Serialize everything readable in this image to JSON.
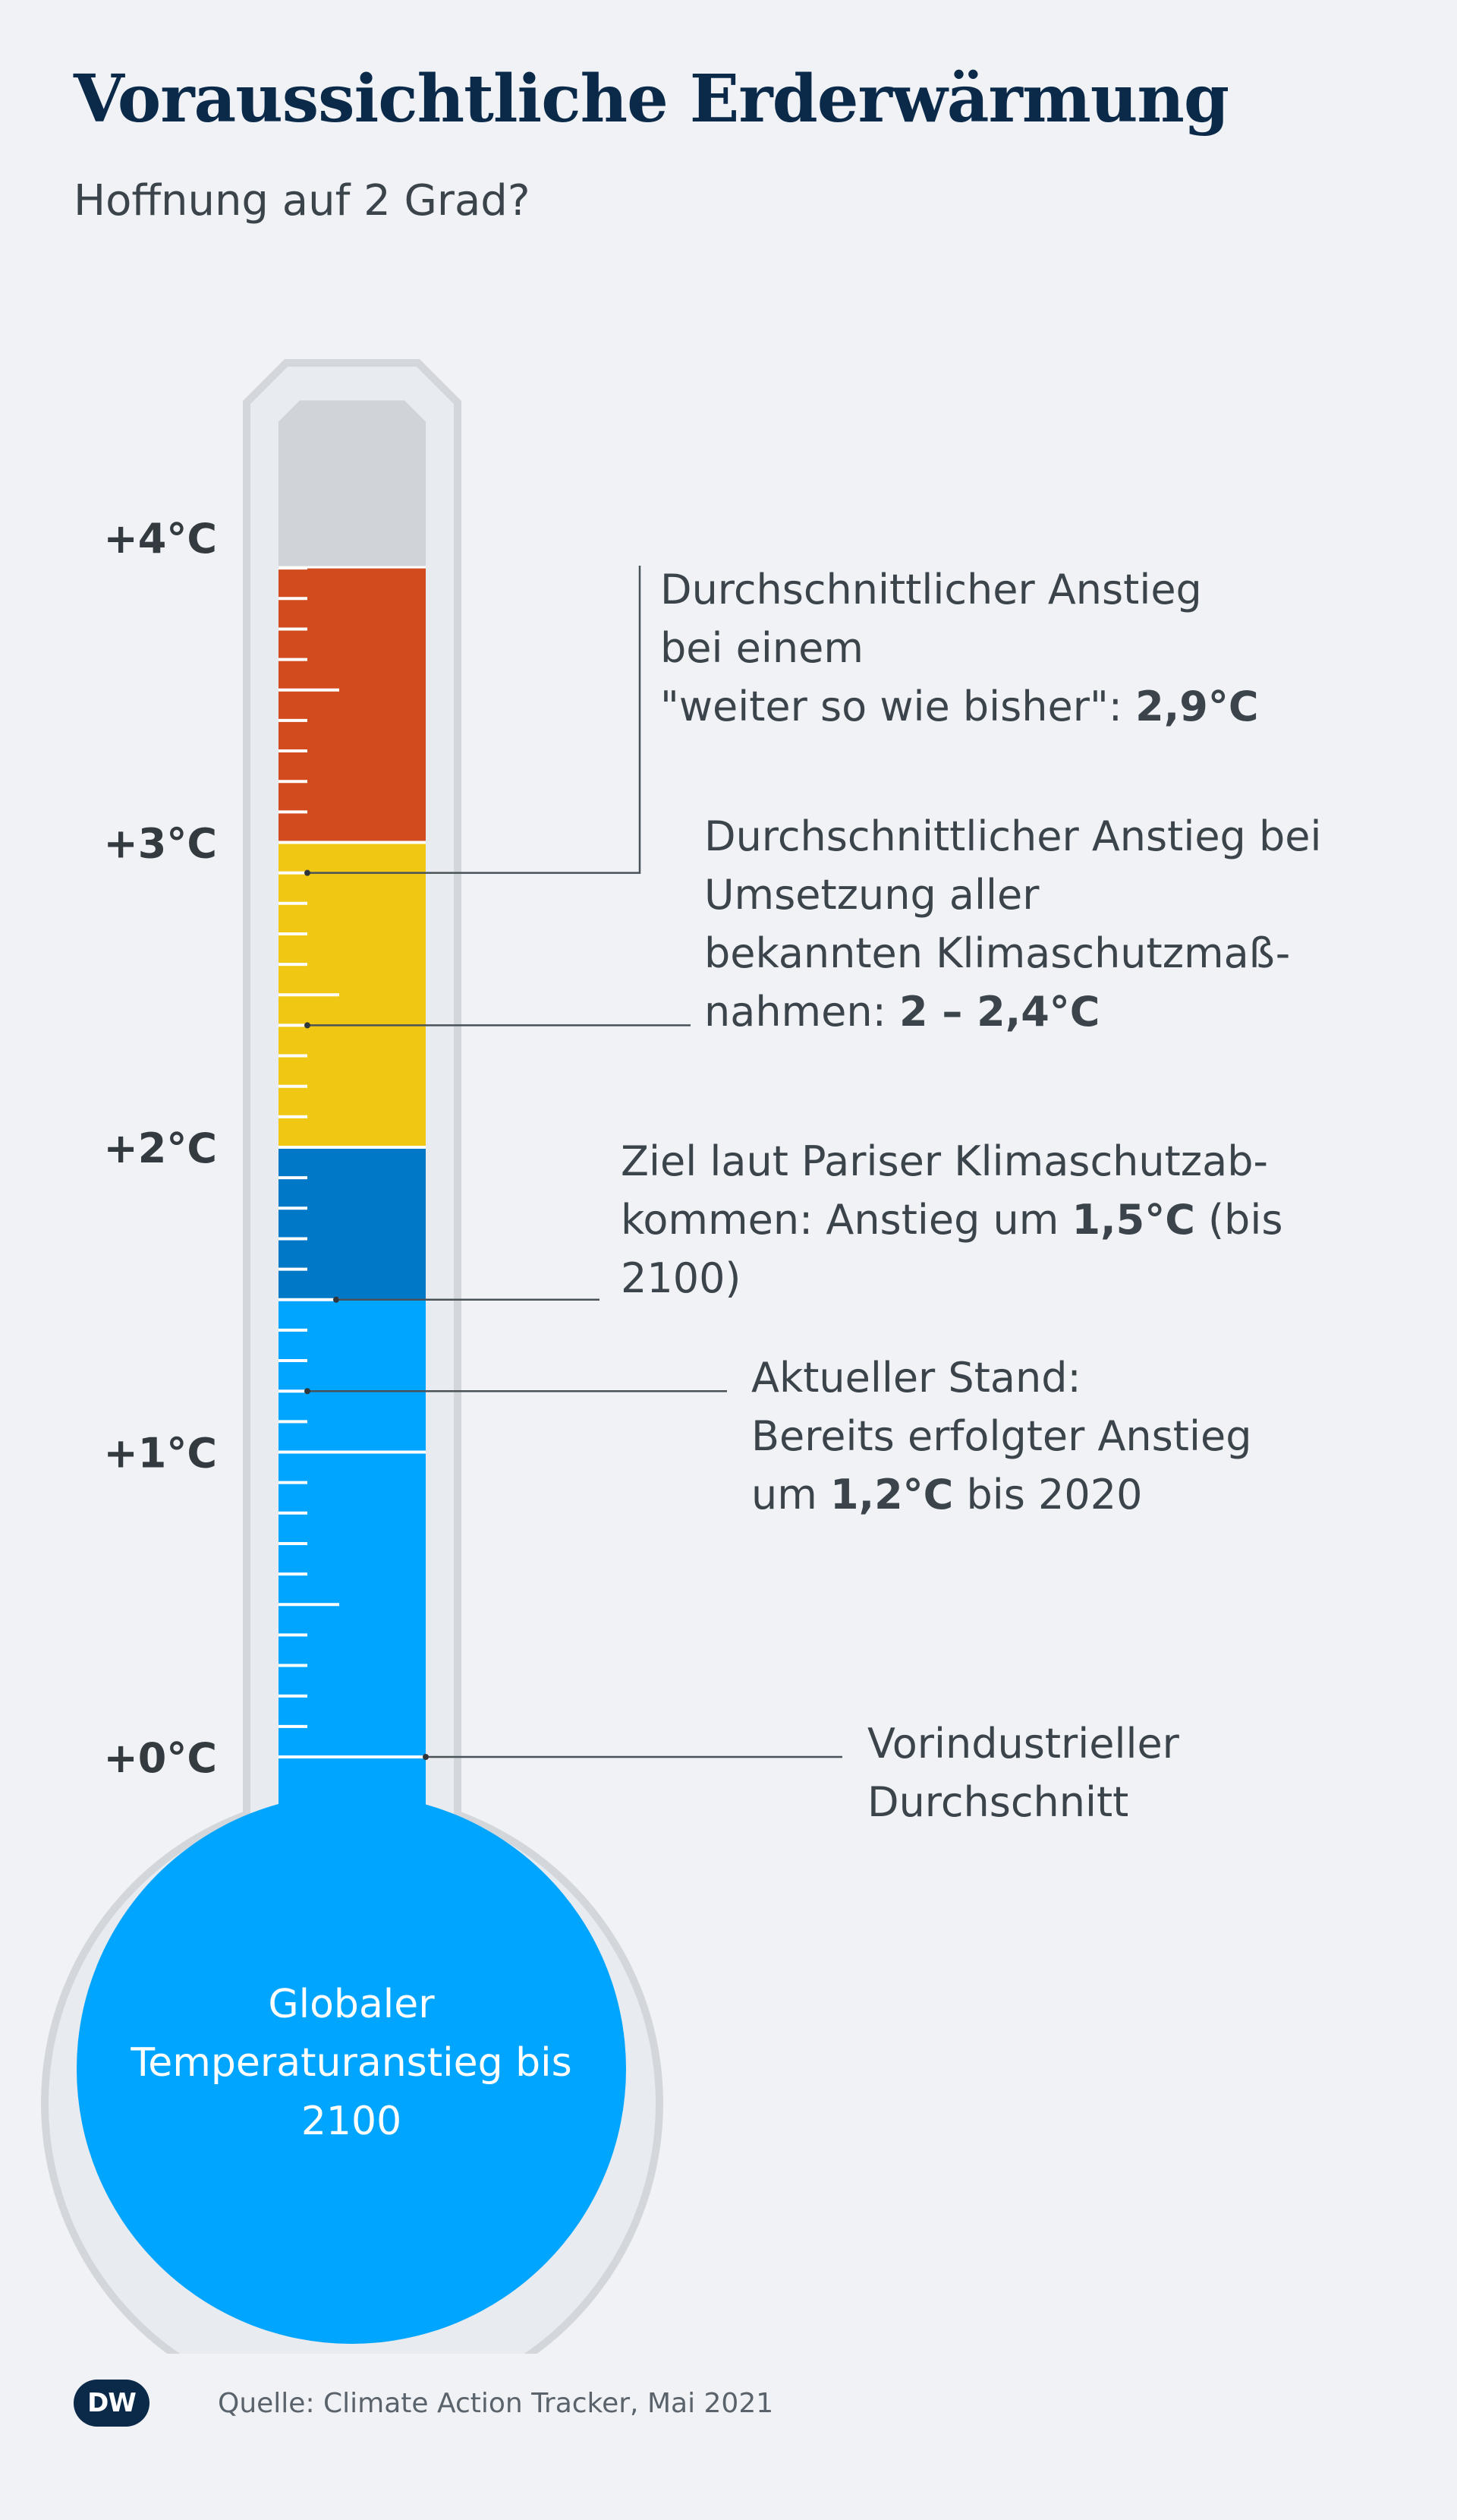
{
  "title": "Voraussichtliche Erderwärmung",
  "subtitle": "Hoffnung auf 2 Grad?",
  "chart_data": {
    "type": "thermometer",
    "unit": "°C",
    "ylim": [
      0,
      4.45
    ],
    "ticks": [
      {
        "value": 0,
        "label": "+0°C"
      },
      {
        "value": 1,
        "label": "+1°C"
      },
      {
        "value": 2,
        "label": "+2°C"
      },
      {
        "value": 3,
        "label": "+3°C"
      },
      {
        "value": 4,
        "label": "+4°C"
      }
    ],
    "bands": [
      {
        "from": 0,
        "to": 1.5,
        "color": "#00a5ff"
      },
      {
        "from": 1.5,
        "to": 2.0,
        "color": "#0078c8"
      },
      {
        "from": 2.0,
        "to": 3.0,
        "color": "#f0c814"
      },
      {
        "from": 3.0,
        "to": 3.9,
        "color": "#d24b1e"
      }
    ],
    "empty_color": "#d0d4d9",
    "bulb_label": [
      "Globaler",
      "Temperaturanstieg bis",
      "2100"
    ],
    "annotations": [
      {
        "value": 2.9,
        "lines": [
          [
            {
              "t": "Durchschnittlicher Anstieg"
            }
          ],
          [
            {
              "t": "bei einem"
            }
          ],
          [
            {
              "t": "\"weiter so wie bisher\": "
            },
            {
              "t": "2,9°C",
              "b": true
            }
          ]
        ]
      },
      {
        "value": 2.4,
        "lines": [
          [
            {
              "t": "Durchschnittlicher Anstieg bei"
            }
          ],
          [
            {
              "t": "Umsetzung aller"
            }
          ],
          [
            {
              "t": "bekannten Klimaschutzmaß-"
            }
          ],
          [
            {
              "t": "nahmen: "
            },
            {
              "t": "2 – 2,4°C",
              "b": true
            }
          ]
        ]
      },
      {
        "value": 1.5,
        "lines": [
          [
            {
              "t": "Ziel laut Pariser Klimaschutzab-"
            }
          ],
          [
            {
              "t": "kommen: Anstieg um "
            },
            {
              "t": "1,5°C",
              "b": true
            },
            {
              "t": " (bis"
            }
          ],
          [
            {
              "t": "2100)"
            }
          ]
        ]
      },
      {
        "value": 1.2,
        "lines": [
          [
            {
              "t": "Aktueller Stand:"
            }
          ],
          [
            {
              "t": "Bereits erfolgter Anstieg"
            }
          ],
          [
            {
              "t": "um "
            },
            {
              "t": "1,2°C",
              "b": true
            },
            {
              "t": " bis 2020"
            }
          ]
        ]
      },
      {
        "value": 0,
        "lines": [
          [
            {
              "t": "Vorindustrieller"
            }
          ],
          [
            {
              "t": "Durchschnitt"
            }
          ]
        ]
      }
    ]
  },
  "footer": {
    "logo": "DW",
    "source": "Quelle: Climate Action Tracker, Mai 2021"
  }
}
